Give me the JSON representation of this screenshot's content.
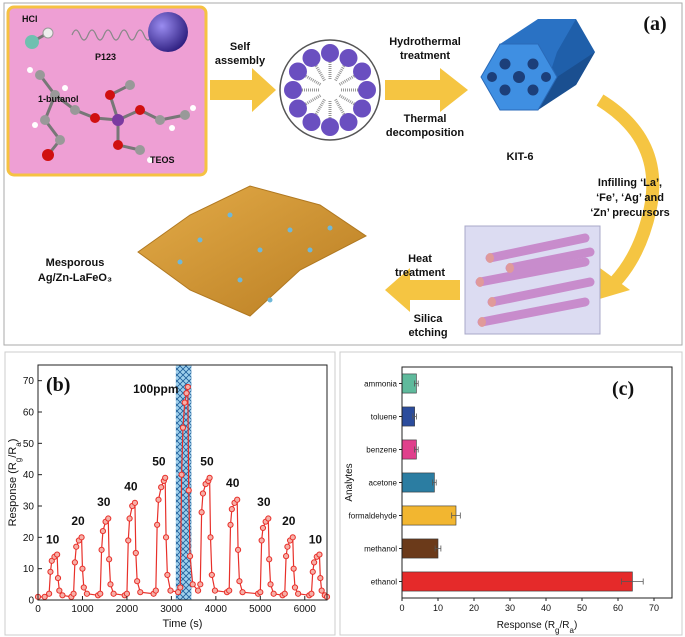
{
  "diagram": {
    "panel_label": "(a)",
    "hcl": "HCl",
    "p123": "P123",
    "butanol": "1-butanol",
    "teos": "TEOS",
    "step1": [
      "Self",
      "assembly"
    ],
    "step2a": [
      "Hydrothermal",
      "treatment"
    ],
    "step2b": [
      "Thermal",
      "decomposition"
    ],
    "kit6": "KIT-6",
    "step3": [
      "Infilling ‘La’,",
      "‘Fe’, ‘Ag’ and",
      "‘Zn’ precursors"
    ],
    "step4a": [
      "Heat",
      "treatment"
    ],
    "step4b": [
      "Silica",
      "etching"
    ],
    "product": [
      "Mesporous",
      "Ag/Zn-LaFeO₃"
    ]
  },
  "chart_data": [
    {
      "type": "line",
      "panel_label": "(b)",
      "xlabel": "Time (s)",
      "ylabel": [
        "Response (R",
        "g",
        "/R",
        "a",
        ")"
      ],
      "color": "#e8302a",
      "x": [
        0,
        150,
        250,
        280,
        310,
        370,
        430,
        450,
        480,
        550,
        750,
        800,
        830,
        860,
        920,
        980,
        1000,
        1030,
        1100,
        1350,
        1400,
        1430,
        1460,
        1520,
        1580,
        1600,
        1630,
        1700,
        1950,
        2000,
        2030,
        2060,
        2120,
        2180,
        2200,
        2230,
        2300,
        2600,
        2650,
        2680,
        2710,
        2770,
        2830,
        2860,
        2880,
        2910,
        2980,
        3150,
        3200,
        3230,
        3260,
        3300,
        3340,
        3370,
        3390,
        3420,
        3480,
        3600,
        3650,
        3680,
        3710,
        3770,
        3830,
        3860,
        3880,
        3910,
        3980,
        4250,
        4300,
        4330,
        4360,
        4420,
        4480,
        4500,
        4530,
        4600,
        4950,
        5000,
        5030,
        5060,
        5120,
        5180,
        5200,
        5230,
        5300,
        5500,
        5550,
        5580,
        5610,
        5670,
        5730,
        5750,
        5780,
        5850,
        6100,
        6150,
        6180,
        6210,
        6270,
        6330,
        6350,
        6380,
        6450,
        6500
      ],
      "values": [
        1,
        1,
        2,
        9,
        12.5,
        13.8,
        14.5,
        7,
        3,
        1.5,
        1,
        2,
        12,
        17,
        19,
        20,
        10,
        4,
        2,
        1.5,
        2,
        16,
        22,
        25,
        26,
        13,
        5,
        2,
        1.5,
        2,
        19,
        26,
        30,
        31,
        15,
        6,
        2.5,
        2,
        3,
        24,
        32,
        36,
        38,
        39,
        20,
        8,
        3,
        2.5,
        4,
        40,
        55,
        63,
        66,
        68,
        35,
        14,
        5,
        3,
        5,
        28,
        34,
        37,
        38,
        39,
        20,
        8,
        3,
        2.5,
        3,
        24,
        29,
        31,
        32,
        16,
        6,
        2.5,
        2,
        2.5,
        19,
        23,
        25,
        26,
        13,
        5,
        2,
        1.5,
        2,
        14,
        17,
        19,
        20,
        10,
        4,
        2,
        1.5,
        2,
        9,
        12,
        13.8,
        14.5,
        7,
        3,
        1.5,
        1
      ],
      "xlim": [
        0,
        6500
      ],
      "xticks": [
        0,
        1000,
        2000,
        3000,
        4000,
        5000,
        6000
      ],
      "ylim": [
        0,
        75
      ],
      "yticks": [
        0,
        10,
        20,
        30,
        40,
        50,
        60,
        70
      ],
      "shaded_x": [
        3100,
        3450
      ],
      "annotations": [
        {
          "text": "10",
          "x": 330,
          "y": 18
        },
        {
          "text": "20",
          "x": 900,
          "y": 24
        },
        {
          "text": "30",
          "x": 1480,
          "y": 30
        },
        {
          "text": "40",
          "x": 2090,
          "y": 35
        },
        {
          "text": "50",
          "x": 2720,
          "y": 43
        },
        {
          "text": "100ppm",
          "x": 2650,
          "y": 66
        },
        {
          "text": "50",
          "x": 3800,
          "y": 43
        },
        {
          "text": "40",
          "x": 4380,
          "y": 36
        },
        {
          "text": "30",
          "x": 5080,
          "y": 30
        },
        {
          "text": "20",
          "x": 5640,
          "y": 24
        },
        {
          "text": "10",
          "x": 6240,
          "y": 18
        }
      ]
    },
    {
      "type": "hbar",
      "panel_label": "(c)",
      "xlabel": [
        "Response (R",
        "g",
        "/R",
        "a",
        ")"
      ],
      "ylabel": "Analytes",
      "categories": [
        "ammonia",
        "toluene",
        "benzene",
        "acetone",
        "formaldehyde",
        "methanol",
        "ethanol"
      ],
      "values": [
        4,
        3.5,
        4,
        9,
        15,
        10,
        64
      ],
      "errors": [
        0.5,
        0.5,
        0.5,
        0.5,
        1.2,
        0.8,
        3
      ],
      "colors": [
        "#5fba9c",
        "#2b4c9c",
        "#e0408c",
        "#2b7da2",
        "#f2b630",
        "#6b3a1a",
        "#e52a2a"
      ],
      "xlim": [
        0,
        75
      ],
      "xticks": [
        0,
        10,
        20,
        30,
        40,
        50,
        60,
        70
      ]
    }
  ]
}
